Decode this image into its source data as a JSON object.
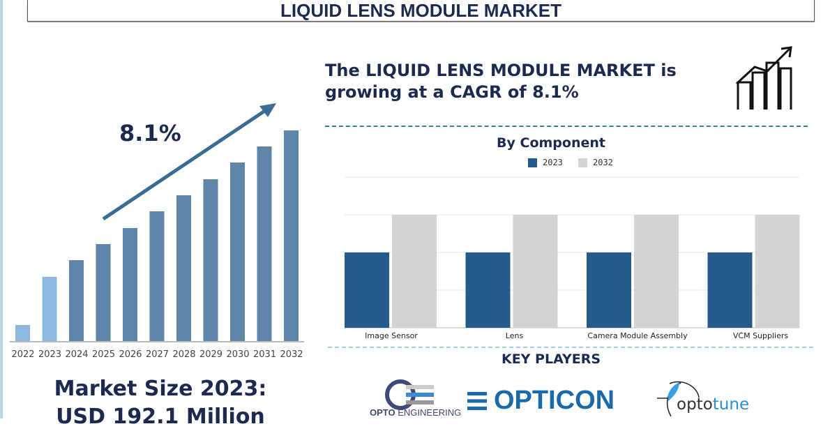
{
  "title": "LIQUID LENS MODULE MARKET",
  "headline": {
    "line1": "The LIQUID LENS MODULE MARKET is",
    "line2": "growing at a CAGR of 8.1%"
  },
  "colors": {
    "navy": "#1b2a4e",
    "bar_historic": "#8db9e0",
    "bar_forecast": "#5f86a8",
    "series_2023": "#255b8a",
    "series_2032": "#d3d3d3"
  },
  "chart_data": [
    {
      "type": "bar",
      "title": "",
      "annotation": "8.1%",
      "categories": [
        "2022",
        "2023",
        "2024",
        "2025",
        "2026",
        "2027",
        "2028",
        "2029",
        "2030",
        "2031",
        "2032"
      ],
      "values_relative": [
        24,
        93,
        117,
        140,
        163,
        187,
        210,
        233,
        257,
        280,
        303
      ],
      "highlighted": [
        "2022",
        "2023"
      ],
      "grid": false,
      "trend_arrow": true
    },
    {
      "type": "bar",
      "title": "By Component",
      "categories": [
        "Image Sensor",
        "Lens",
        "Camera Module Assembly",
        "VCM Suppliers"
      ],
      "series": [
        {
          "name": "2023",
          "values": [
            2,
            2,
            2,
            2
          ]
        },
        {
          "name": "2032",
          "values": [
            3,
            3,
            3,
            3
          ]
        }
      ],
      "ylim": [
        0,
        4
      ],
      "grid": true,
      "legend": "top"
    }
  ],
  "market_size": {
    "line1": "Market Size 2023:",
    "line2": "USD 192.1 Million"
  },
  "key_players": {
    "title": "KEY PLAYERS",
    "logos": [
      {
        "name": "OPTO ENGINEERING",
        "part1": "OPTO",
        "part2": " ENGINEERING"
      },
      {
        "name": "OPTICON"
      },
      {
        "name": "optotune",
        "part1": "opto",
        "part2": "tune"
      }
    ]
  },
  "icons": [
    "growth-chart-icon",
    "trend-arrow-icon"
  ]
}
